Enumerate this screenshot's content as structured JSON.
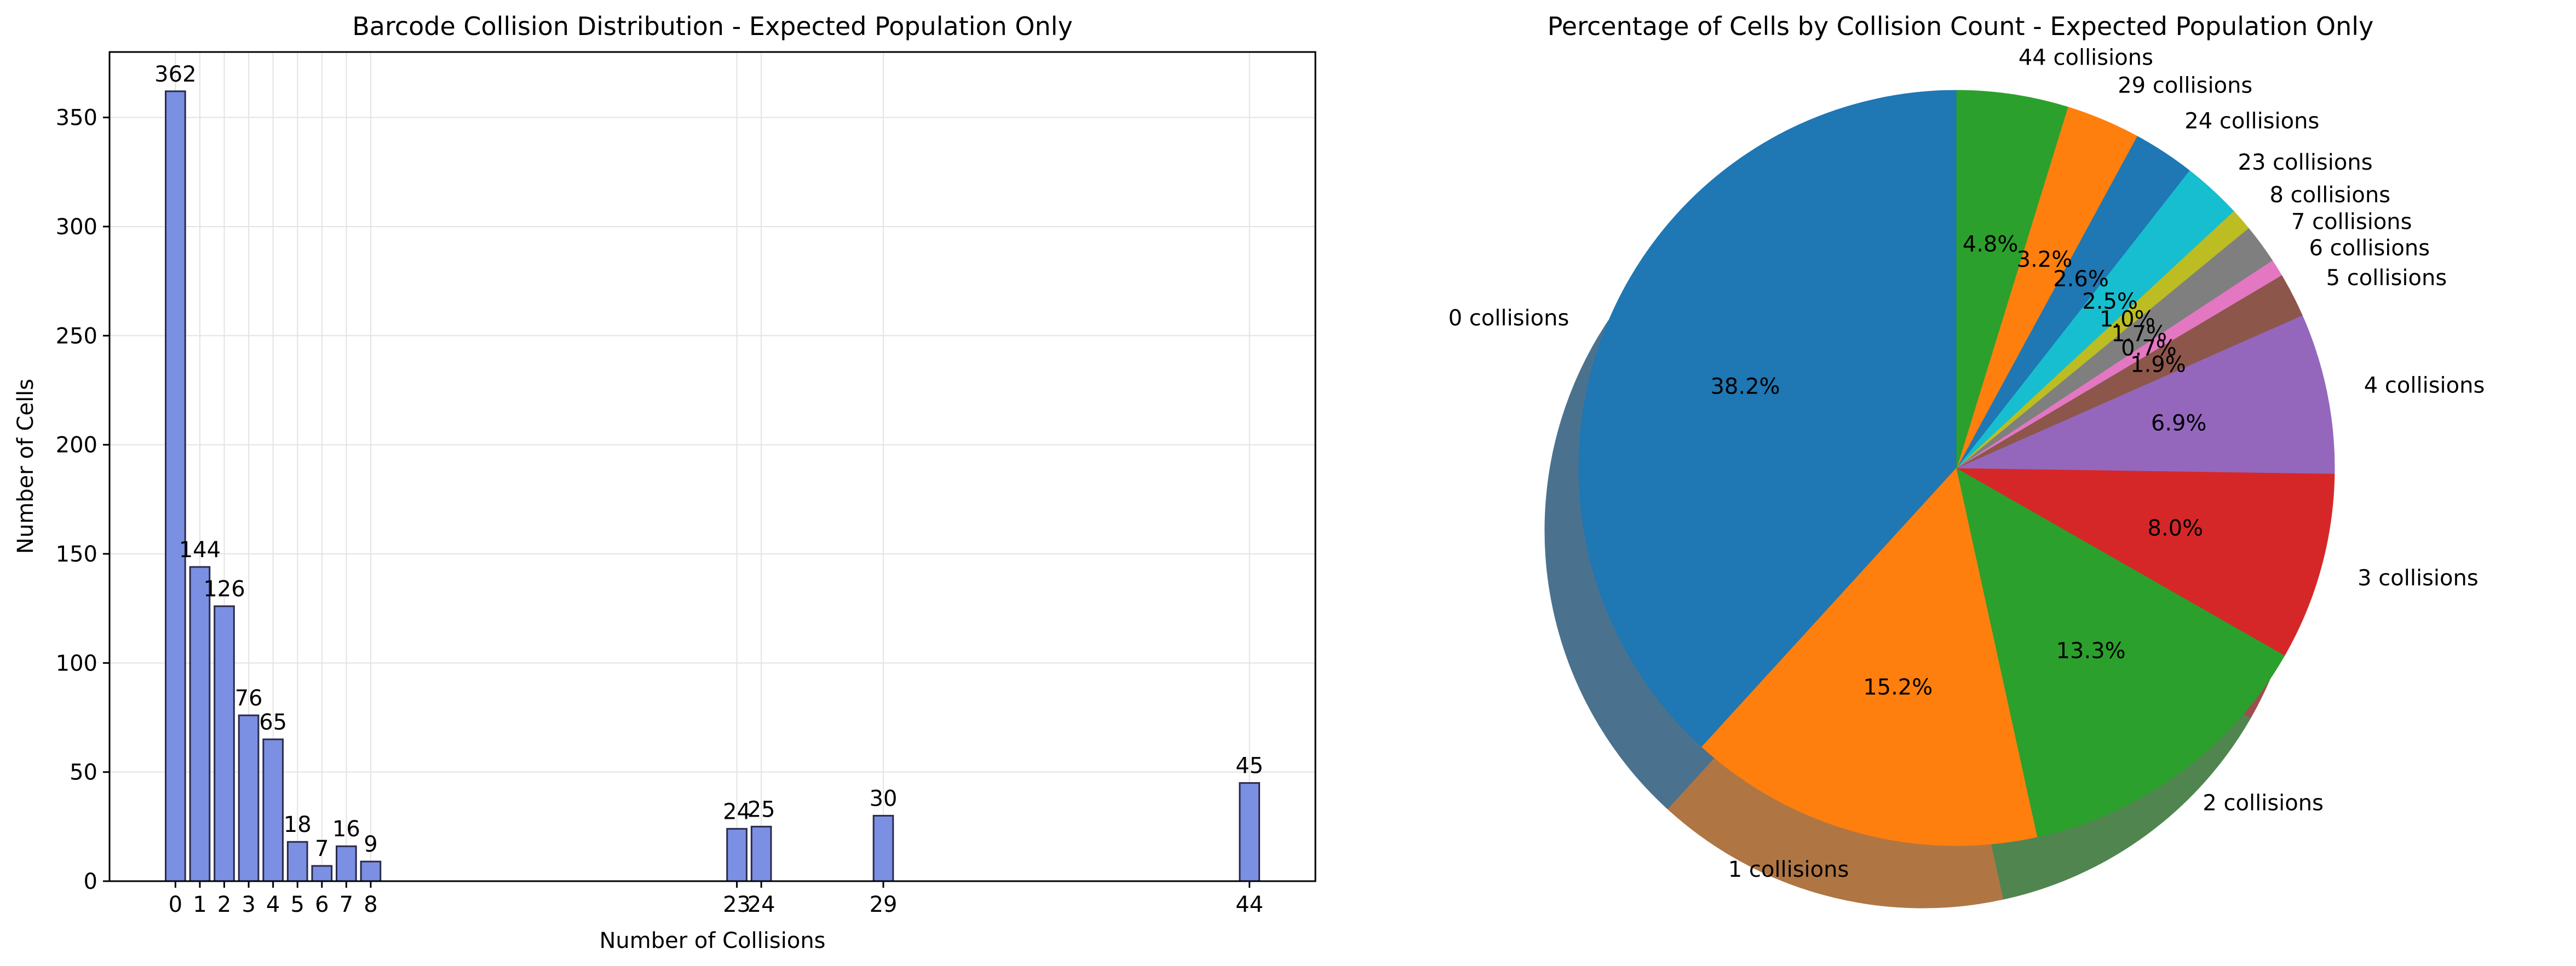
{
  "chart_data": [
    {
      "type": "bar",
      "title": "Barcode Collision Distribution - Expected Population Only",
      "xlabel": "Number of Collisions",
      "ylabel": "Number of Cells",
      "x": [
        0,
        1,
        2,
        3,
        4,
        5,
        6,
        7,
        8,
        23,
        24,
        29,
        44
      ],
      "values": [
        362,
        144,
        126,
        76,
        65,
        18,
        7,
        16,
        9,
        24,
        25,
        30,
        45
      ],
      "value_labels": [
        "362",
        "144",
        "126",
        "76",
        "65",
        "18",
        "7",
        "16",
        "9",
        "24",
        "25",
        "30",
        "45"
      ],
      "xticks": [
        "0",
        "1",
        "2",
        "3",
        "4",
        "5",
        "6",
        "7",
        "8",
        "23",
        "24",
        "29",
        "44"
      ],
      "yticks": [
        "0",
        "50",
        "100",
        "150",
        "200",
        "250",
        "300",
        "350"
      ],
      "ylim": [
        0,
        380
      ],
      "xlim": [
        -2.7,
        46.7
      ],
      "grid": true,
      "bar_color": "#7b8fe3",
      "edge_color": "#2a2a4a"
    },
    {
      "type": "pie",
      "title": "Percentage of Cells by Collision Count - Expected Population Only",
      "shadow": true,
      "start_angle": 90,
      "direction": "counterclockwise",
      "labels": [
        "0 collisions",
        "1 collisions",
        "2 collisions",
        "3 collisions",
        "4 collisions",
        "5 collisions",
        "6 collisions",
        "7 collisions",
        "8 collisions",
        "23 collisions",
        "24 collisions",
        "29 collisions",
        "44 collisions"
      ],
      "values": [
        362,
        144,
        126,
        76,
        65,
        18,
        7,
        16,
        9,
        24,
        25,
        30,
        45
      ],
      "pct_labels": [
        "38.2%",
        "15.2%",
        "13.3%",
        "8.0%",
        "6.9%",
        "1.9%",
        "0.7%",
        "1.7%",
        "1.0%",
        "2.5%",
        "2.6%",
        "3.2%",
        "4.8%"
      ],
      "colors": [
        "#1f77b4",
        "#ff7f0e",
        "#2ca02c",
        "#d62728",
        "#9467bd",
        "#8c564b",
        "#e377c2",
        "#7f7f7f",
        "#bcbd22",
        "#17becf",
        "#1f77b4",
        "#ff7f0e",
        "#2ca02c"
      ]
    }
  ]
}
